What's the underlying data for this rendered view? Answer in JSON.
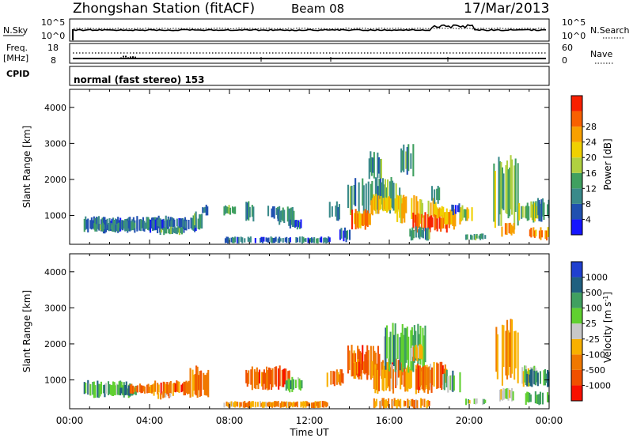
{
  "header": {
    "station": "Zhongshan Station (fitACF)",
    "beam": "Beam 08",
    "date": "17/Mar/2013"
  },
  "noise_panel": {
    "left_label": "N.Sky",
    "left_ticks": [
      "10^5",
      "10^0"
    ],
    "right_label": "N.Search",
    "right_ticks": [
      "10^5",
      "10^0"
    ]
  },
  "freq_panel": {
    "left_label_1": "Freq.",
    "left_label_2": "[MHz]",
    "left_ticks": [
      "18",
      "8"
    ],
    "right_label": "Nave",
    "right_ticks": [
      "60",
      "0"
    ]
  },
  "cpid_panel": {
    "label": "CPID",
    "text": "normal (fast stereo) 153"
  },
  "colors": {
    "power": [
      "#1515ff",
      "#2050b0",
      "#3a8a8a",
      "#40a060",
      "#b0d040",
      "#f0d000",
      "#f8a000",
      "#f86000",
      "#f82000"
    ],
    "velocity": [
      "#f81000",
      "#f05000",
      "#f07800",
      "#f8b000",
      "#c8c8c8",
      "#60d030",
      "#40a060",
      "#206080",
      "#2040d0"
    ]
  },
  "chart_data": [
    {
      "type": "heatmap",
      "name": "power",
      "ylabel": "Slant Range [km]",
      "ylim": [
        200,
        4500
      ],
      "yticks": [
        1000,
        2000,
        3000,
        4000
      ],
      "colorbar_label": "Power [dB]",
      "colorbar_ticks": [
        "4",
        "8",
        "12",
        "16",
        "20",
        "24",
        "28"
      ],
      "colorbar_range": [
        0,
        32
      ],
      "xlim": [
        0,
        24
      ],
      "patches": [
        [
          0.7,
          6.5,
          500,
          1000,
          2
        ],
        [
          1.2,
          2.5,
          550,
          800,
          3
        ],
        [
          2.5,
          4.0,
          550,
          900,
          2
        ],
        [
          3.9,
          5.8,
          600,
          950,
          2
        ],
        [
          4.5,
          5.6,
          450,
          700,
          3
        ],
        [
          6.1,
          6.6,
          600,
          1150,
          3
        ],
        [
          6.5,
          6.9,
          1000,
          1300,
          2
        ],
        [
          7.7,
          13.0,
          220,
          420,
          2
        ],
        [
          7.7,
          8.3,
          1000,
          1300,
          3
        ],
        [
          8.8,
          9.2,
          800,
          1400,
          3
        ],
        [
          9.9,
          10.4,
          900,
          1300,
          3
        ],
        [
          10.4,
          11.2,
          700,
          1300,
          3
        ],
        [
          11.0,
          11.6,
          600,
          900,
          2
        ],
        [
          12.8,
          13.6,
          800,
          1400,
          2
        ],
        [
          13.5,
          14.0,
          250,
          700,
          2
        ],
        [
          13.9,
          16.6,
          1000,
          2100,
          3
        ],
        [
          14.1,
          15.1,
          600,
          1200,
          7
        ],
        [
          15.0,
          16.8,
          1000,
          1600,
          6
        ],
        [
          16.3,
          18.3,
          700,
          1600,
          6
        ],
        [
          16.5,
          17.3,
          2000,
          3000,
          3
        ],
        [
          17.1,
          18.9,
          500,
          1100,
          8
        ],
        [
          17.0,
          18.0,
          300,
          700,
          3
        ],
        [
          18.6,
          19.5,
          600,
          1200,
          6
        ],
        [
          19.5,
          20.2,
          800,
          1300,
          5
        ],
        [
          19.8,
          20.8,
          300,
          500,
          3
        ],
        [
          21.2,
          22.4,
          600,
          2800,
          4
        ],
        [
          21.6,
          22.2,
          400,
          800,
          7
        ],
        [
          22.4,
          23.5,
          800,
          1400,
          4
        ],
        [
          23.0,
          24.0,
          300,
          700,
          7
        ],
        [
          23.4,
          24.0,
          800,
          1500,
          2
        ],
        [
          19.1,
          19.5,
          1000,
          1400,
          1
        ],
        [
          18.3,
          18.7,
          900,
          1300,
          6
        ],
        [
          14.9,
          15.6,
          2000,
          2800,
          3
        ],
        [
          18.1,
          18.5,
          1300,
          1900,
          3
        ]
      ]
    },
    {
      "type": "heatmap",
      "name": "velocity",
      "ylabel": "Slant Range [km]",
      "ylim": [
        200,
        4500
      ],
      "yticks": [
        1000,
        2000,
        3000,
        4000
      ],
      "colorbar_label": "Velocity [m s^-1]",
      "colorbar_ticks": [
        "1000",
        "500",
        "100",
        "25",
        "-25",
        "-100",
        "-500",
        "-1000"
      ],
      "colorbar_range": [
        -1000,
        1000
      ],
      "xlim": [
        0,
        24
      ],
      "patches": [
        [
          0.7,
          3.0,
          500,
          1000,
          6
        ],
        [
          2.5,
          3.3,
          550,
          850,
          7
        ],
        [
          3.0,
          4.2,
          600,
          900,
          2
        ],
        [
          4.0,
          6.0,
          550,
          1000,
          2
        ],
        [
          4.4,
          5.0,
          450,
          700,
          3
        ],
        [
          6.0,
          6.9,
          500,
          1400,
          2
        ],
        [
          7.7,
          13.0,
          220,
          420,
          3
        ],
        [
          8.8,
          11.0,
          700,
          1400,
          2
        ],
        [
          10.8,
          11.6,
          650,
          1100,
          6
        ],
        [
          12.8,
          13.7,
          800,
          1300,
          2
        ],
        [
          13.9,
          15.5,
          1000,
          2000,
          2
        ],
        [
          14.2,
          16.8,
          1000,
          1600,
          2
        ],
        [
          15.2,
          18.2,
          600,
          1500,
          3
        ],
        [
          15.6,
          17.8,
          1200,
          2600,
          6
        ],
        [
          17.2,
          18.9,
          700,
          1500,
          2
        ],
        [
          15.2,
          18.0,
          200,
          500,
          3
        ],
        [
          18.6,
          19.5,
          600,
          1300,
          6
        ],
        [
          19.8,
          20.8,
          300,
          500,
          5
        ],
        [
          21.2,
          22.4,
          800,
          2800,
          3
        ],
        [
          22.5,
          23.4,
          800,
          1400,
          5
        ],
        [
          22.8,
          24.0,
          800,
          1300,
          7
        ],
        [
          22.8,
          24.0,
          300,
          700,
          6
        ],
        [
          21.5,
          22.2,
          400,
          800,
          5
        ],
        [
          17.0,
          17.6,
          1500,
          2000,
          4
        ]
      ]
    }
  ],
  "x_axis": {
    "ticks": [
      "00:00",
      "04:00",
      "08:00",
      "12:00",
      "16:00",
      "20:00",
      "00:00"
    ],
    "label": "Time UT"
  }
}
